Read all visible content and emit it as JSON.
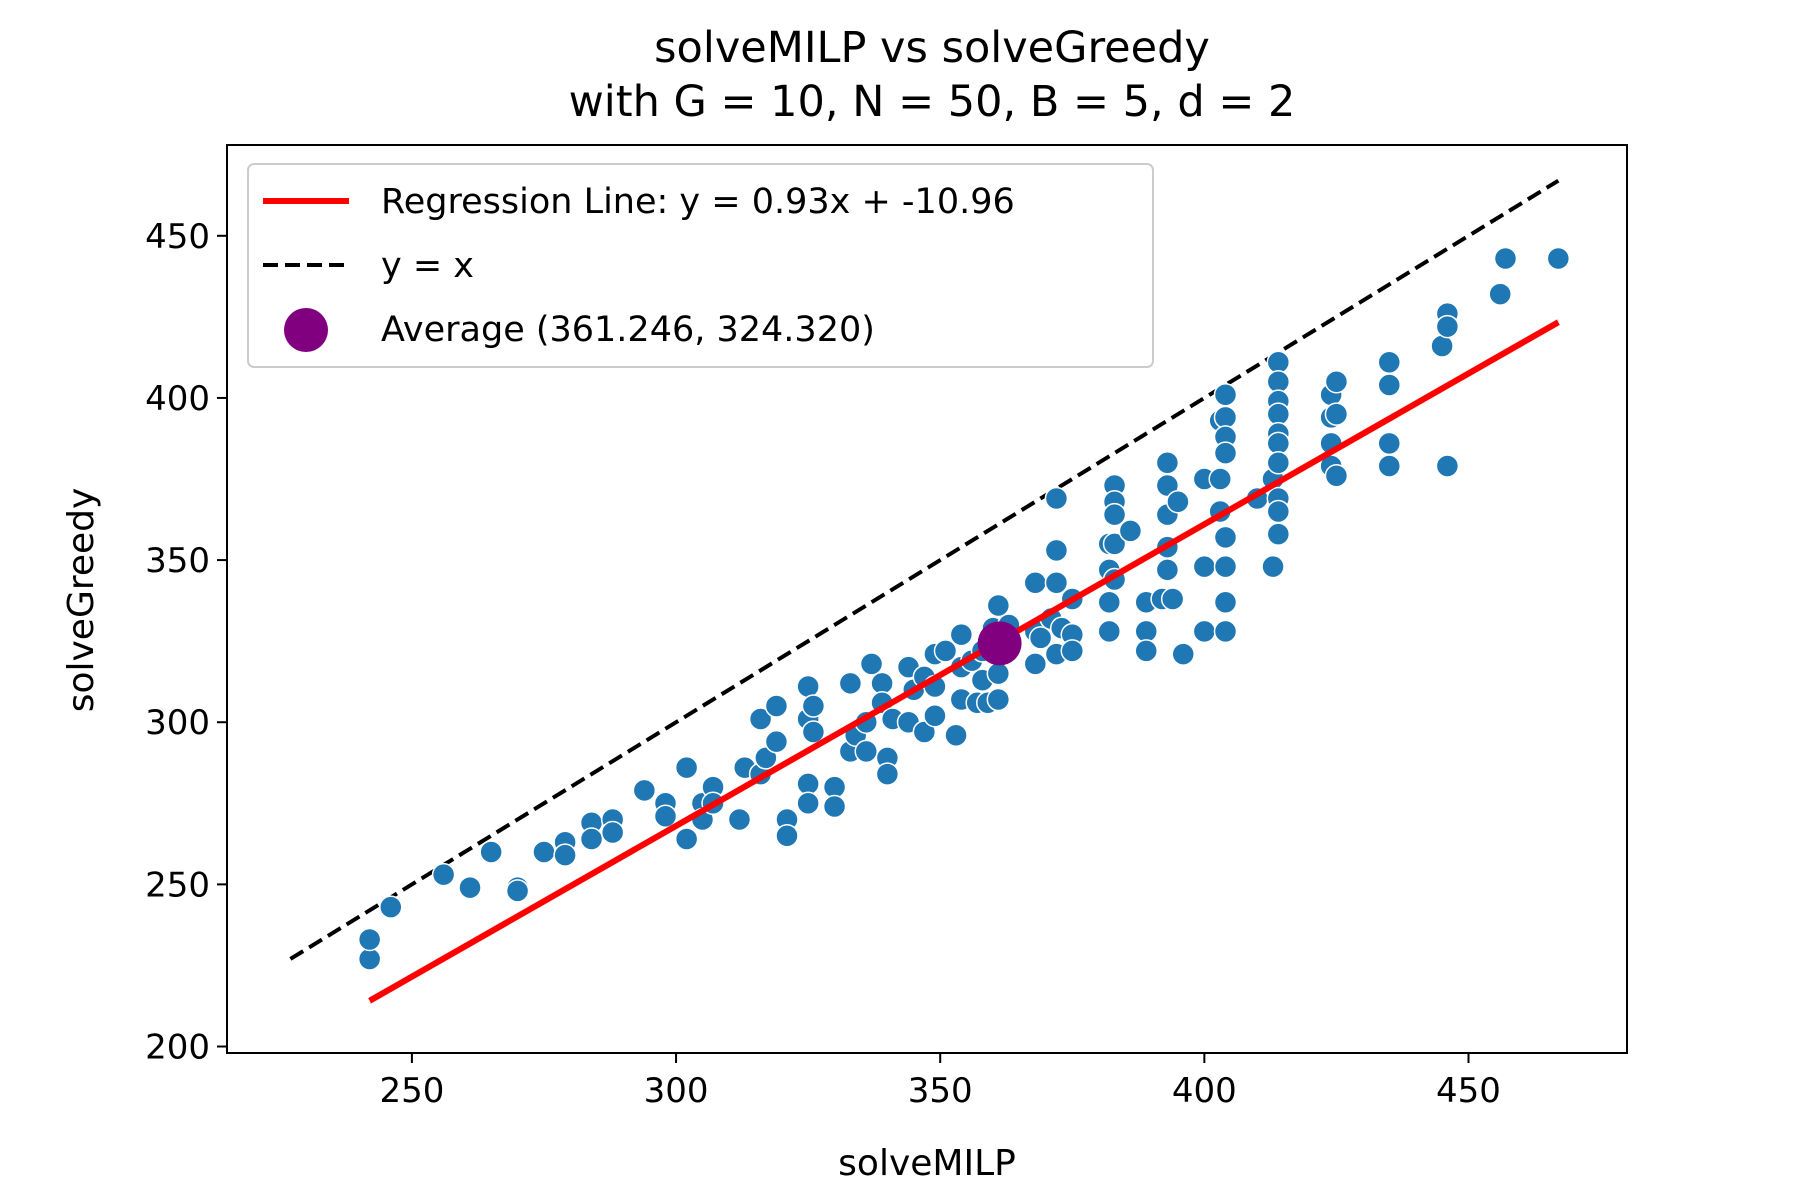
{
  "chart_data": {
    "type": "scatter",
    "title": "solveMILP vs solveGreedy",
    "subtitle": "with G = 10, N = 50, B = 5, d = 2",
    "xlabel": "solveMILP",
    "ylabel": "solveGreedy",
    "xlim": [
      215,
      480
    ],
    "ylim": [
      198,
      478
    ],
    "xticks": [
      250,
      300,
      350,
      400,
      450
    ],
    "yticks": [
      200,
      250,
      300,
      350,
      400,
      450
    ],
    "grid": false,
    "legend_position": "upper-left",
    "colors": {
      "points": "#1f77b4",
      "regression": "#ff0000",
      "identity": "#000000",
      "average": "#800080"
    },
    "legend": [
      {
        "label": "Regression Line: y = 0.93x + -10.96",
        "style": "red-solid-line"
      },
      {
        "label": "y = x",
        "style": "black-dashed-line"
      },
      {
        "label": "Average (361.246, 324.320)",
        "style": "purple-dot"
      }
    ],
    "regression": {
      "slope": 0.93,
      "intercept": -10.96,
      "x_range": [
        242,
        467
      ]
    },
    "identity_line": {
      "x_range": [
        227,
        467
      ]
    },
    "average": {
      "x": 361.246,
      "y": 324.32
    },
    "points": [
      [
        242,
        227
      ],
      [
        242,
        233
      ],
      [
        246,
        243
      ],
      [
        256,
        253
      ],
      [
        261,
        249
      ],
      [
        265,
        260
      ],
      [
        270,
        249
      ],
      [
        270,
        248
      ],
      [
        275,
        260
      ],
      [
        279,
        263
      ],
      [
        279,
        259
      ],
      [
        284,
        269
      ],
      [
        284,
        264
      ],
      [
        288,
        270
      ],
      [
        288,
        266
      ],
      [
        294,
        279
      ],
      [
        298,
        275
      ],
      [
        298,
        271
      ],
      [
        302,
        286
      ],
      [
        302,
        264
      ],
      [
        305,
        275
      ],
      [
        305,
        270
      ],
      [
        307,
        280
      ],
      [
        307,
        275
      ],
      [
        312,
        270
      ],
      [
        313,
        286
      ],
      [
        316,
        284
      ],
      [
        316,
        301
      ],
      [
        317,
        289
      ],
      [
        319,
        305
      ],
      [
        319,
        294
      ],
      [
        321,
        270
      ],
      [
        321,
        265
      ],
      [
        325,
        311
      ],
      [
        325,
        301
      ],
      [
        325,
        281
      ],
      [
        325,
        275
      ],
      [
        326,
        305
      ],
      [
        326,
        297
      ],
      [
        330,
        280
      ],
      [
        330,
        274
      ],
      [
        333,
        312
      ],
      [
        333,
        291
      ],
      [
        334,
        296
      ],
      [
        336,
        300
      ],
      [
        336,
        291
      ],
      [
        337,
        318
      ],
      [
        339,
        312
      ],
      [
        339,
        306
      ],
      [
        340,
        289
      ],
      [
        340,
        284
      ],
      [
        341,
        301
      ],
      [
        344,
        317
      ],
      [
        344,
        300
      ],
      [
        345,
        310
      ],
      [
        347,
        314
      ],
      [
        347,
        297
      ],
      [
        349,
        321
      ],
      [
        349,
        311
      ],
      [
        349,
        302
      ],
      [
        351,
        322
      ],
      [
        353,
        296
      ],
      [
        354,
        327
      ],
      [
        354,
        317
      ],
      [
        354,
        307
      ],
      [
        356,
        319
      ],
      [
        357,
        306
      ],
      [
        358,
        322
      ],
      [
        358,
        313
      ],
      [
        359,
        306
      ],
      [
        360,
        329
      ],
      [
        361,
        336
      ],
      [
        361,
        315
      ],
      [
        361,
        307
      ],
      [
        362,
        322
      ],
      [
        363,
        330
      ],
      [
        368,
        343
      ],
      [
        368,
        328
      ],
      [
        368,
        318
      ],
      [
        369,
        326
      ],
      [
        371,
        332
      ],
      [
        372,
        369
      ],
      [
        372,
        353
      ],
      [
        372,
        343
      ],
      [
        372,
        321
      ],
      [
        373,
        329
      ],
      [
        375,
        338
      ],
      [
        375,
        327
      ],
      [
        375,
        322
      ],
      [
        382,
        355
      ],
      [
        382,
        347
      ],
      [
        382,
        337
      ],
      [
        382,
        328
      ],
      [
        383,
        373
      ],
      [
        383,
        368
      ],
      [
        383,
        364
      ],
      [
        383,
        344
      ],
      [
        383,
        355
      ],
      [
        386,
        359
      ],
      [
        389,
        337
      ],
      [
        389,
        328
      ],
      [
        389,
        322
      ],
      [
        392,
        338
      ],
      [
        393,
        380
      ],
      [
        393,
        373
      ],
      [
        393,
        364
      ],
      [
        393,
        354
      ],
      [
        393,
        347
      ],
      [
        394,
        338
      ],
      [
        395,
        368
      ],
      [
        396,
        321
      ],
      [
        400,
        375
      ],
      [
        400,
        348
      ],
      [
        400,
        328
      ],
      [
        403,
        393
      ],
      [
        403,
        375
      ],
      [
        403,
        365
      ],
      [
        404,
        401
      ],
      [
        404,
        394
      ],
      [
        404,
        388
      ],
      [
        404,
        383
      ],
      [
        404,
        357
      ],
      [
        404,
        348
      ],
      [
        404,
        337
      ],
      [
        404,
        328
      ],
      [
        410,
        369
      ],
      [
        413,
        348
      ],
      [
        413,
        375
      ],
      [
        414,
        411
      ],
      [
        414,
        405
      ],
      [
        414,
        399
      ],
      [
        414,
        395
      ],
      [
        414,
        389
      ],
      [
        414,
        386
      ],
      [
        414,
        380
      ],
      [
        414,
        369
      ],
      [
        414,
        365
      ],
      [
        414,
        358
      ],
      [
        424,
        401
      ],
      [
        424,
        394
      ],
      [
        424,
        386
      ],
      [
        424,
        379
      ],
      [
        425,
        405
      ],
      [
        425,
        395
      ],
      [
        425,
        376
      ],
      [
        435,
        411
      ],
      [
        435,
        404
      ],
      [
        435,
        386
      ],
      [
        435,
        379
      ],
      [
        445,
        416
      ],
      [
        446,
        426
      ],
      [
        446,
        422
      ],
      [
        446,
        379
      ],
      [
        456,
        432
      ],
      [
        457,
        443
      ],
      [
        467,
        443
      ]
    ]
  }
}
